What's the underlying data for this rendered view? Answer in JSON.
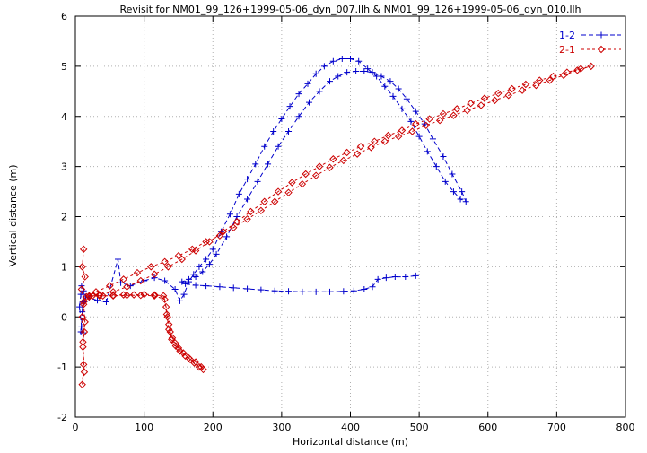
{
  "window": {
    "title": "Revisit for NM01_99_126+1999-05-06_dyn_007.llh & NM01_99_126+1999-05-06_dyn_010.llh"
  },
  "chart_data": {
    "type": "line",
    "title": "Revisit for NM01_99_126+1999-05-06_dyn_007.llh & NM01_99_126+1999-05-06_dyn_010.llh",
    "xlabel": "Horizontal distance (m)",
    "ylabel": "Vertical distance (m)",
    "xlim": [
      0,
      800
    ],
    "ylim": [
      -2,
      6
    ],
    "xticks": [
      0,
      100,
      200,
      300,
      400,
      500,
      600,
      700,
      800
    ],
    "yticks": [
      -2,
      -1,
      0,
      1,
      2,
      3,
      4,
      5,
      6
    ],
    "grid": true,
    "grid_style": "dotted",
    "legend_position": "top-right",
    "background": "#ffffff",
    "series": [
      {
        "name": "1-2",
        "color": "#0000cc",
        "marker": "plus",
        "dash": [
          5,
          3
        ],
        "points": [
          [
            8,
            0.45
          ],
          [
            6,
            0.2
          ],
          [
            9,
            -0.2
          ],
          [
            11,
            -0.32
          ],
          [
            8,
            -0.3
          ],
          [
            10,
            0.1
          ],
          [
            12,
            0.52
          ],
          [
            9,
            0.62
          ],
          [
            13,
            0.3
          ],
          [
            11,
            0.45
          ],
          [
            15,
            0.4
          ],
          [
            20,
            0.38
          ],
          [
            32,
            0.33
          ],
          [
            45,
            0.3
          ],
          [
            62,
            1.15
          ],
          [
            66,
            0.68
          ],
          [
            80,
            0.62
          ],
          [
            100,
            0.72
          ],
          [
            115,
            0.78
          ],
          [
            130,
            0.72
          ],
          [
            145,
            0.55
          ],
          [
            152,
            0.32
          ],
          [
            158,
            0.45
          ],
          [
            165,
            0.7
          ],
          [
            172,
            0.85
          ],
          [
            180,
            1.0
          ],
          [
            190,
            1.15
          ],
          [
            200,
            1.35
          ],
          [
            212,
            1.7
          ],
          [
            225,
            2.05
          ],
          [
            238,
            2.45
          ],
          [
            250,
            2.75
          ],
          [
            262,
            3.05
          ],
          [
            275,
            3.4
          ],
          [
            288,
            3.7
          ],
          [
            300,
            3.95
          ],
          [
            312,
            4.2
          ],
          [
            325,
            4.45
          ],
          [
            338,
            4.65
          ],
          [
            350,
            4.85
          ],
          [
            362,
            5.0
          ],
          [
            375,
            5.1
          ],
          [
            388,
            5.15
          ],
          [
            400,
            5.15
          ],
          [
            412,
            5.1
          ],
          [
            425,
            4.95
          ],
          [
            438,
            4.8
          ],
          [
            450,
            4.6
          ],
          [
            462,
            4.4
          ],
          [
            475,
            4.15
          ],
          [
            488,
            3.9
          ],
          [
            500,
            3.6
          ],
          [
            512,
            3.3
          ],
          [
            525,
            3.0
          ],
          [
            538,
            2.7
          ],
          [
            550,
            2.5
          ],
          [
            560,
            2.35
          ],
          [
            568,
            2.3
          ],
          [
            562,
            2.5
          ],
          [
            548,
            2.85
          ],
          [
            535,
            3.2
          ],
          [
            520,
            3.55
          ],
          [
            508,
            3.85
          ],
          [
            495,
            4.1
          ],
          [
            482,
            4.35
          ],
          [
            470,
            4.55
          ],
          [
            458,
            4.7
          ],
          [
            445,
            4.8
          ],
          [
            432,
            4.88
          ],
          [
            420,
            4.9
          ],
          [
            408,
            4.9
          ],
          [
            395,
            4.88
          ],
          [
            382,
            4.8
          ],
          [
            370,
            4.7
          ],
          [
            355,
            4.5
          ],
          [
            340,
            4.28
          ],
          [
            325,
            4.0
          ],
          [
            310,
            3.7
          ],
          [
            295,
            3.4
          ],
          [
            280,
            3.05
          ],
          [
            265,
            2.7
          ],
          [
            250,
            2.35
          ],
          [
            235,
            2.0
          ],
          [
            220,
            1.6
          ],
          [
            205,
            1.25
          ],
          [
            195,
            1.05
          ],
          [
            185,
            0.9
          ],
          [
            175,
            0.8
          ],
          [
            165,
            0.75
          ],
          [
            155,
            0.7
          ],
          [
            160,
            0.66
          ],
          [
            175,
            0.63
          ],
          [
            190,
            0.62
          ],
          [
            210,
            0.6
          ],
          [
            230,
            0.58
          ],
          [
            250,
            0.56
          ],
          [
            270,
            0.54
          ],
          [
            290,
            0.52
          ],
          [
            310,
            0.51
          ],
          [
            330,
            0.5
          ],
          [
            350,
            0.5
          ],
          [
            370,
            0.5
          ],
          [
            390,
            0.51
          ],
          [
            405,
            0.52
          ],
          [
            420,
            0.55
          ],
          [
            432,
            0.6
          ],
          [
            440,
            0.75
          ],
          [
            452,
            0.78
          ],
          [
            465,
            0.8
          ],
          [
            480,
            0.8
          ],
          [
            495,
            0.82
          ]
        ]
      },
      {
        "name": "2-1",
        "color": "#cc0000",
        "marker": "diamond",
        "dash": [
          3,
          3
        ],
        "points": [
          [
            12,
            1.35
          ],
          [
            10,
            1.0
          ],
          [
            14,
            0.8
          ],
          [
            9,
            0.55
          ],
          [
            12,
            0.3
          ],
          [
            10,
            0.0
          ],
          [
            13,
            -0.3
          ],
          [
            11,
            -0.6
          ],
          [
            12,
            -0.95
          ],
          [
            10,
            -1.35
          ],
          [
            13,
            -1.1
          ],
          [
            11,
            -0.5
          ],
          [
            14,
            -0.1
          ],
          [
            12,
            0.25
          ],
          [
            16,
            0.4
          ],
          [
            25,
            0.42
          ],
          [
            40,
            0.42
          ],
          [
            55,
            0.43
          ],
          [
            70,
            0.44
          ],
          [
            85,
            0.44
          ],
          [
            100,
            0.45
          ],
          [
            115,
            0.44
          ],
          [
            128,
            0.42
          ],
          [
            132,
            0.2
          ],
          [
            134,
            0.0
          ],
          [
            136,
            -0.15
          ],
          [
            138,
            -0.3
          ],
          [
            141,
            -0.42
          ],
          [
            145,
            -0.52
          ],
          [
            150,
            -0.62
          ],
          [
            157,
            -0.72
          ],
          [
            165,
            -0.82
          ],
          [
            173,
            -0.92
          ],
          [
            180,
            -1.0
          ],
          [
            186,
            -1.05
          ],
          [
            183,
            -1.0
          ],
          [
            175,
            -0.9
          ],
          [
            167,
            -0.85
          ],
          [
            160,
            -0.78
          ],
          [
            152,
            -0.68
          ],
          [
            146,
            -0.58
          ],
          [
            140,
            -0.45
          ],
          [
            136,
            -0.25
          ],
          [
            133,
            0.05
          ],
          [
            130,
            0.35
          ],
          [
            115,
            0.42
          ],
          [
            95,
            0.43
          ],
          [
            75,
            0.43
          ],
          [
            55,
            0.42
          ],
          [
            35,
            0.42
          ],
          [
            20,
            0.42
          ],
          [
            30,
            0.5
          ],
          [
            50,
            0.62
          ],
          [
            70,
            0.75
          ],
          [
            90,
            0.88
          ],
          [
            110,
            1.0
          ],
          [
            130,
            1.1
          ],
          [
            150,
            1.22
          ],
          [
            170,
            1.35
          ],
          [
            190,
            1.5
          ],
          [
            210,
            1.62
          ],
          [
            230,
            1.78
          ],
          [
            250,
            1.95
          ],
          [
            270,
            2.12
          ],
          [
            290,
            2.3
          ],
          [
            310,
            2.48
          ],
          [
            330,
            2.65
          ],
          [
            350,
            2.82
          ],
          [
            370,
            2.98
          ],
          [
            390,
            3.12
          ],
          [
            410,
            3.25
          ],
          [
            430,
            3.38
          ],
          [
            450,
            3.5
          ],
          [
            470,
            3.6
          ],
          [
            490,
            3.7
          ],
          [
            510,
            3.82
          ],
          [
            530,
            3.92
          ],
          [
            550,
            4.02
          ],
          [
            570,
            4.12
          ],
          [
            590,
            4.22
          ],
          [
            610,
            4.32
          ],
          [
            630,
            4.42
          ],
          [
            650,
            4.52
          ],
          [
            670,
            4.62
          ],
          [
            690,
            4.72
          ],
          [
            710,
            4.82
          ],
          [
            730,
            4.92
          ],
          [
            750,
            5.0
          ],
          [
            735,
            4.95
          ],
          [
            715,
            4.88
          ],
          [
            695,
            4.8
          ],
          [
            675,
            4.72
          ],
          [
            655,
            4.64
          ],
          [
            635,
            4.55
          ],
          [
            615,
            4.46
          ],
          [
            595,
            4.36
          ],
          [
            575,
            4.26
          ],
          [
            555,
            4.15
          ],
          [
            535,
            4.05
          ],
          [
            515,
            3.95
          ],
          [
            495,
            3.85
          ],
          [
            475,
            3.72
          ],
          [
            455,
            3.62
          ],
          [
            435,
            3.5
          ],
          [
            415,
            3.4
          ],
          [
            395,
            3.28
          ],
          [
            375,
            3.15
          ],
          [
            355,
            3.0
          ],
          [
            335,
            2.85
          ],
          [
            315,
            2.68
          ],
          [
            295,
            2.5
          ],
          [
            275,
            2.3
          ],
          [
            255,
            2.1
          ],
          [
            235,
            1.9
          ],
          [
            215,
            1.7
          ],
          [
            195,
            1.5
          ],
          [
            175,
            1.32
          ],
          [
            155,
            1.15
          ],
          [
            135,
            1.0
          ],
          [
            115,
            0.85
          ],
          [
            95,
            0.72
          ],
          [
            75,
            0.6
          ],
          [
            55,
            0.5
          ],
          [
            35,
            0.44
          ],
          [
            20,
            0.4
          ]
        ]
      }
    ]
  }
}
